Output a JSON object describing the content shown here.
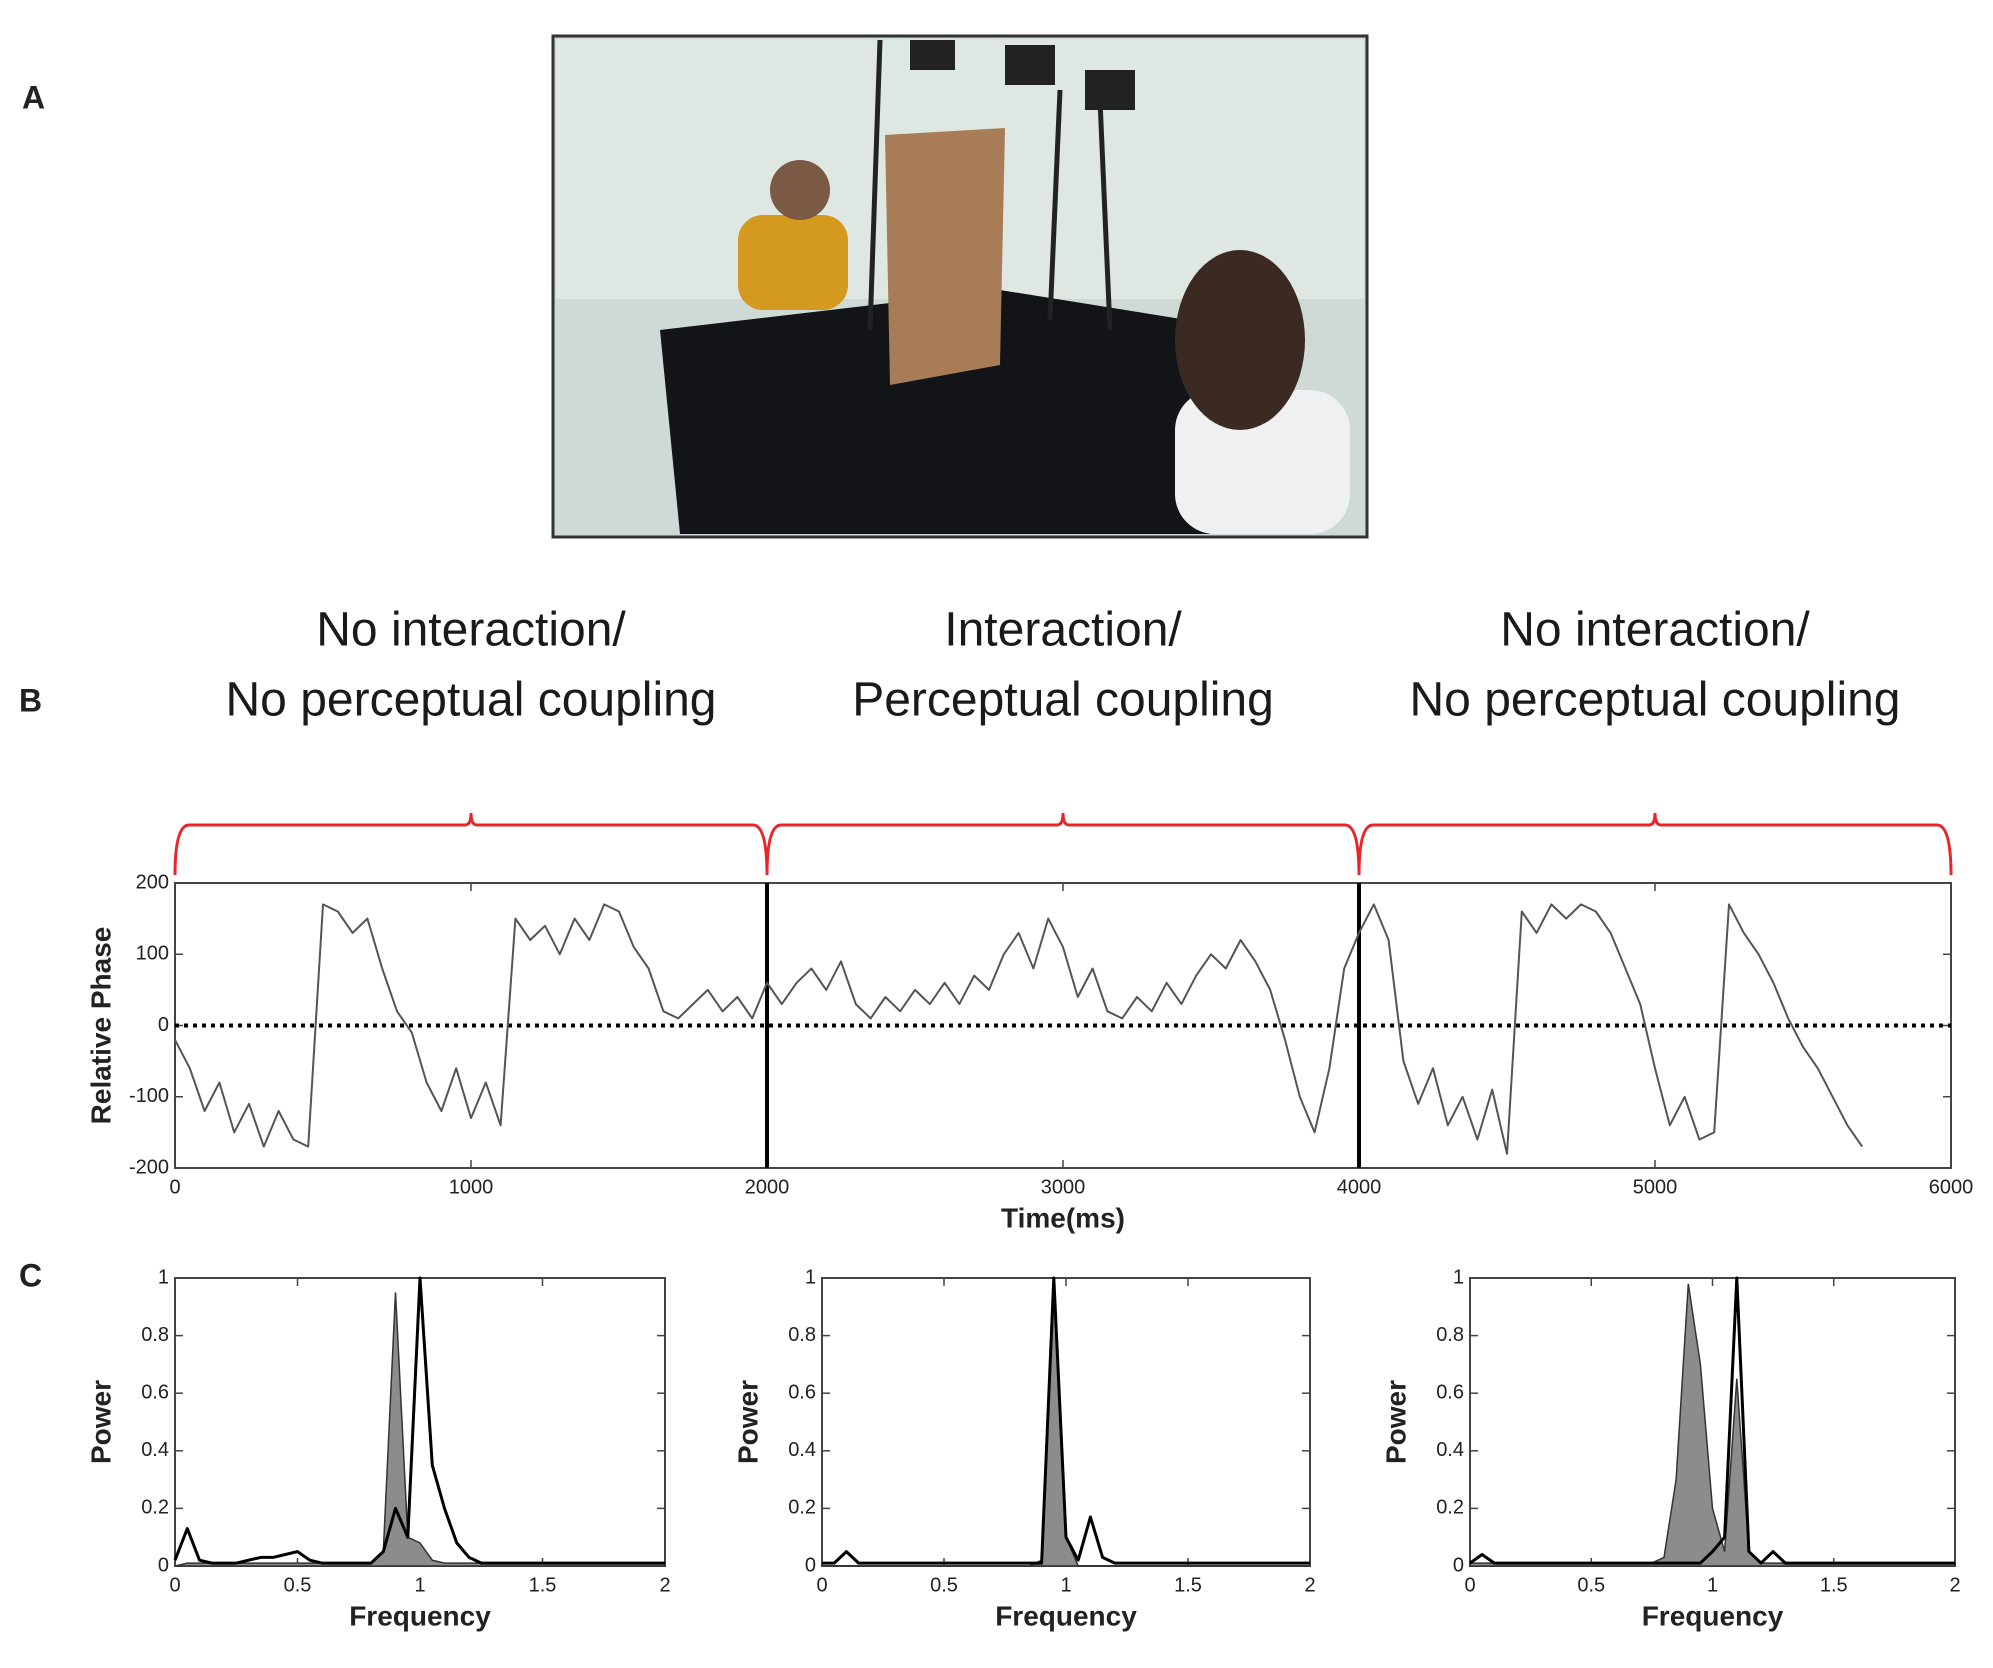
{
  "panel_labels": [
    "A",
    "B",
    "C"
  ],
  "chart_data": [
    {
      "type": "line",
      "xlabel": "Time(ms)",
      "ylabel": "Relative Phase",
      "xlim": [
        0,
        6000
      ],
      "ylim": [
        -200,
        200
      ],
      "xticks": [
        0,
        1000,
        2000,
        3000,
        4000,
        5000,
        6000
      ],
      "yticks": [
        -200,
        -100,
        0,
        100,
        200
      ],
      "hline": 0,
      "vlines": [
        2000,
        4000
      ],
      "brace_color": "#e8262a",
      "braces": [
        {
          "lines": [
            "No interaction/",
            "No perceptual coupling"
          ],
          "from": 0,
          "to": 2000
        },
        {
          "lines": [
            "Interaction/",
            "Perceptual coupling"
          ],
          "from": 2000,
          "to": 4000
        },
        {
          "lines": [
            "No interaction/",
            "No perceptual coupling"
          ],
          "from": 4000,
          "to": 6000
        }
      ],
      "x": [
        0,
        50,
        100,
        150,
        200,
        250,
        300,
        350,
        400,
        450,
        500,
        550,
        600,
        650,
        700,
        750,
        800,
        850,
        900,
        950,
        1000,
        1050,
        1100,
        1150,
        1200,
        1250,
        1300,
        1350,
        1400,
        1450,
        1500,
        1550,
        1600,
        1650,
        1700,
        1750,
        1800,
        1850,
        1900,
        1950,
        2000,
        2050,
        2100,
        2150,
        2200,
        2250,
        2300,
        2350,
        2400,
        2450,
        2500,
        2550,
        2600,
        2650,
        2700,
        2750,
        2800,
        2850,
        2900,
        2950,
        3000,
        3050,
        3100,
        3150,
        3200,
        3250,
        3300,
        3350,
        3400,
        3450,
        3500,
        3550,
        3600,
        3650,
        3700,
        3750,
        3800,
        3850,
        3900,
        3950,
        4000,
        4050,
        4100,
        4150,
        4200,
        4250,
        4300,
        4350,
        4400,
        4450,
        4500,
        4550,
        4600,
        4650,
        4700,
        4750,
        4800,
        4850,
        4900,
        4950,
        5000,
        5050,
        5100,
        5150,
        5200,
        5250,
        5300,
        5350,
        5400,
        5450,
        5500,
        5550,
        5600,
        5650,
        5700
      ],
      "series": [
        {
          "color": "#555555",
          "values": [
            -20,
            -60,
            -120,
            -80,
            -150,
            -110,
            -170,
            -120,
            -160,
            -170,
            170,
            160,
            130,
            150,
            80,
            20,
            -10,
            -80,
            -120,
            -60,
            -130,
            -80,
            -140,
            150,
            120,
            140,
            100,
            150,
            120,
            170,
            160,
            110,
            80,
            20,
            10,
            30,
            50,
            20,
            40,
            10,
            60,
            30,
            60,
            80,
            50,
            90,
            30,
            10,
            40,
            20,
            50,
            30,
            60,
            30,
            70,
            50,
            100,
            130,
            80,
            150,
            110,
            40,
            80,
            20,
            10,
            40,
            20,
            60,
            30,
            70,
            100,
            80,
            120,
            90,
            50,
            -20,
            -100,
            -150,
            -60,
            80,
            130,
            170,
            120,
            -50,
            -110,
            -60,
            -140,
            -100,
            -160,
            -90,
            -180,
            160,
            130,
            170,
            150,
            170,
            160,
            130,
            80,
            30,
            -60,
            -140,
            -100,
            -160,
            -150,
            170,
            130,
            100,
            60,
            10,
            -30,
            -60,
            -100,
            -140,
            -170
          ]
        }
      ]
    },
    {
      "type": "line",
      "xlabel": "Frequency",
      "ylabel": "Power",
      "xlim": [
        0,
        2
      ],
      "ylim": [
        0,
        1
      ],
      "xticks": [
        0,
        0.5,
        1,
        1.5,
        2
      ],
      "yticks": [
        0,
        0.2,
        0.4,
        0.6,
        0.8,
        1
      ],
      "x": [
        0,
        0.05,
        0.1,
        0.15,
        0.2,
        0.25,
        0.3,
        0.35,
        0.4,
        0.45,
        0.5,
        0.55,
        0.6,
        0.65,
        0.7,
        0.75,
        0.8,
        0.85,
        0.9,
        0.95,
        1,
        1.05,
        1.1,
        1.15,
        1.2,
        1.25,
        1.3,
        1.35,
        1.4,
        1.45,
        1.5,
        1.55,
        1.6,
        1.65,
        1.7,
        1.75,
        1.8,
        1.85,
        1.9,
        1.95,
        2
      ],
      "series": [
        {
          "color": "#8c8c8c",
          "area": true,
          "values": [
            0,
            0.01,
            0.01,
            0.01,
            0.01,
            0.01,
            0.01,
            0.01,
            0.01,
            0.01,
            0.01,
            0.01,
            0.01,
            0.01,
            0.01,
            0.01,
            0.01,
            0.05,
            0.95,
            0.1,
            0.08,
            0.02,
            0.01,
            0.01,
            0.01,
            0.01,
            0.01,
            0.01,
            0.01,
            0.01,
            0.01,
            0.01,
            0.01,
            0.01,
            0.01,
            0.01,
            0.01,
            0.01,
            0.01,
            0.01,
            0.01
          ]
        },
        {
          "color": "#000000",
          "values": [
            0.02,
            0.13,
            0.02,
            0.01,
            0.01,
            0.01,
            0.02,
            0.03,
            0.03,
            0.04,
            0.05,
            0.02,
            0.01,
            0.01,
            0.01,
            0.01,
            0.01,
            0.05,
            0.2,
            0.1,
            1,
            0.35,
            0.2,
            0.08,
            0.03,
            0.01,
            0.01,
            0.01,
            0.01,
            0.01,
            0.01,
            0.01,
            0.01,
            0.01,
            0.01,
            0.01,
            0.01,
            0.01,
            0.01,
            0.01,
            0.01
          ]
        }
      ]
    },
    {
      "type": "line",
      "xlabel": "Frequency",
      "ylabel": "Power",
      "xlim": [
        0,
        2
      ],
      "ylim": [
        0,
        1
      ],
      "xticks": [
        0,
        0.5,
        1,
        1.5,
        2
      ],
      "yticks": [
        0,
        0.2,
        0.4,
        0.6,
        0.8,
        1
      ],
      "x": [
        0,
        0.05,
        0.1,
        0.15,
        0.2,
        0.25,
        0.3,
        0.35,
        0.4,
        0.45,
        0.5,
        0.55,
        0.6,
        0.65,
        0.7,
        0.75,
        0.8,
        0.85,
        0.9,
        0.95,
        1,
        1.05,
        1.1,
        1.15,
        1.2,
        1.25,
        1.3,
        1.35,
        1.4,
        1.45,
        1.5,
        1.55,
        1.6,
        1.65,
        1.7,
        1.75,
        1.8,
        1.85,
        1.9,
        1.95,
        2
      ],
      "series": [
        {
          "color": "#8c8c8c",
          "area": true,
          "values": [
            0,
            0,
            0,
            0,
            0,
            0,
            0,
            0,
            0,
            0,
            0,
            0,
            0,
            0,
            0,
            0,
            0,
            0,
            0.02,
            1,
            0.1,
            0,
            0,
            0,
            0,
            0,
            0,
            0,
            0,
            0,
            0,
            0,
            0,
            0,
            0,
            0,
            0,
            0,
            0,
            0,
            0
          ]
        },
        {
          "color": "#000000",
          "values": [
            0.01,
            0.01,
            0.05,
            0.01,
            0.01,
            0.01,
            0.01,
            0.01,
            0.01,
            0.01,
            0.01,
            0.01,
            0.01,
            0.01,
            0.01,
            0.01,
            0.01,
            0.01,
            0.01,
            1,
            0.1,
            0.02,
            0.17,
            0.03,
            0.01,
            0.01,
            0.01,
            0.01,
            0.01,
            0.01,
            0.01,
            0.01,
            0.01,
            0.01,
            0.01,
            0.01,
            0.01,
            0.01,
            0.01,
            0.01,
            0.01
          ]
        }
      ]
    },
    {
      "type": "line",
      "xlabel": "Frequency",
      "ylabel": "Power",
      "xlim": [
        0,
        2
      ],
      "ylim": [
        0,
        1
      ],
      "xticks": [
        0,
        0.5,
        1,
        1.5,
        2
      ],
      "yticks": [
        0,
        0.2,
        0.4,
        0.6,
        0.8,
        1
      ],
      "x": [
        0,
        0.05,
        0.1,
        0.15,
        0.2,
        0.25,
        0.3,
        0.35,
        0.4,
        0.45,
        0.5,
        0.55,
        0.6,
        0.65,
        0.7,
        0.75,
        0.8,
        0.85,
        0.9,
        0.95,
        1,
        1.05,
        1.1,
        1.15,
        1.2,
        1.25,
        1.3,
        1.35,
        1.4,
        1.45,
        1.5,
        1.55,
        1.6,
        1.65,
        1.7,
        1.75,
        1.8,
        1.85,
        1.9,
        1.95,
        2
      ],
      "series": [
        {
          "color": "#8c8c8c",
          "area": true,
          "values": [
            0.01,
            0.01,
            0.01,
            0.01,
            0.01,
            0.01,
            0.01,
            0.01,
            0.01,
            0.01,
            0.01,
            0.01,
            0.01,
            0.01,
            0.01,
            0.01,
            0.03,
            0.3,
            0.98,
            0.7,
            0.2,
            0.05,
            0.65,
            0.05,
            0.01,
            0.01,
            0.01,
            0.01,
            0.01,
            0.01,
            0.01,
            0.01,
            0.01,
            0.01,
            0.01,
            0.01,
            0.01,
            0.01,
            0.01,
            0.01,
            0.01
          ]
        },
        {
          "color": "#000000",
          "values": [
            0.01,
            0.04,
            0.01,
            0.01,
            0.01,
            0.01,
            0.01,
            0.01,
            0.01,
            0.01,
            0.01,
            0.01,
            0.01,
            0.01,
            0.01,
            0.01,
            0.01,
            0.01,
            0.01,
            0.01,
            0.05,
            0.1,
            1,
            0.05,
            0.01,
            0.05,
            0.01,
            0.01,
            0.01,
            0.01,
            0.01,
            0.01,
            0.01,
            0.01,
            0.01,
            0.01,
            0.01,
            0.01,
            0.01,
            0.01,
            0.01
          ]
        }
      ]
    }
  ]
}
